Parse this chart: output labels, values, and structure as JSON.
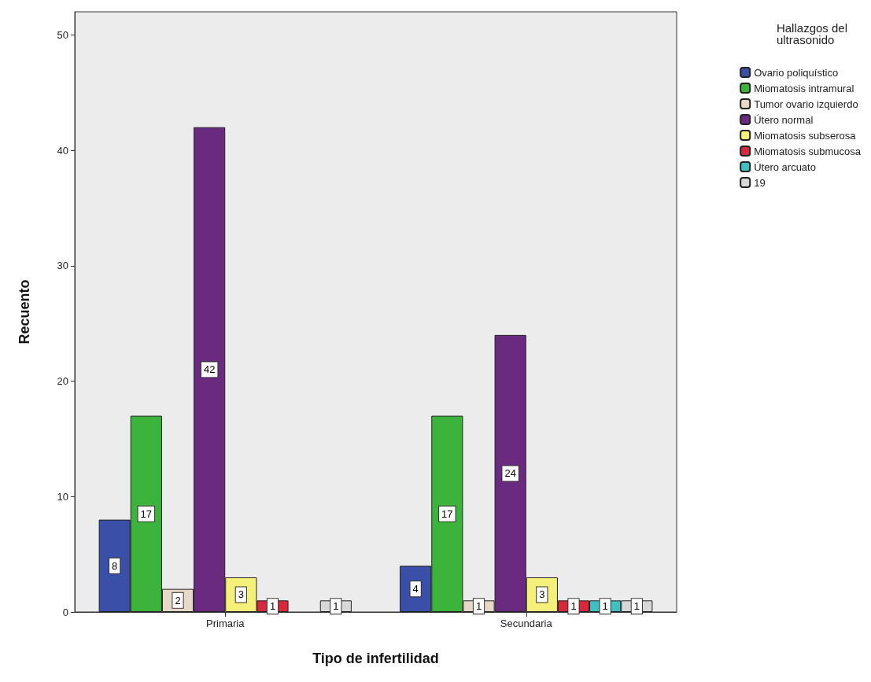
{
  "chart_data": {
    "type": "bar",
    "xlabel": "Tipo de infertilidad",
    "ylabel": "Recuento",
    "legend_title": "Hallazgos del\nultrasonido",
    "categories": [
      "Primaria",
      "Secundaria"
    ],
    "series": [
      {
        "name": "Ovario poliquístico",
        "color": "#3a4fa8",
        "values": [
          8,
          4
        ]
      },
      {
        "name": "Miomatosis intramural",
        "color": "#3cb43c",
        "values": [
          17,
          17
        ]
      },
      {
        "name": "Tumor ovario izquierdo",
        "color": "#e8d8c8",
        "values": [
          2,
          1
        ]
      },
      {
        "name": "Útero normal",
        "color": "#6a2a80",
        "values": [
          42,
          24
        ]
      },
      {
        "name": "Miomatosis subserosa",
        "color": "#f5f07a",
        "values": [
          3,
          3
        ]
      },
      {
        "name": "Miomatosis submucosa",
        "color": "#d8283c",
        "values": [
          1,
          1
        ]
      },
      {
        "name": "Útero arcuato",
        "color": "#40c0c0",
        "values": [
          null,
          1
        ]
      },
      {
        "name": "19",
        "color": "#d8d8d8",
        "values": [
          1,
          1
        ]
      }
    ],
    "ylim": [
      0,
      52
    ],
    "yticks": [
      0,
      10,
      20,
      30,
      40,
      50
    ],
    "grid": false,
    "legend": "right",
    "data_labels": true
  }
}
